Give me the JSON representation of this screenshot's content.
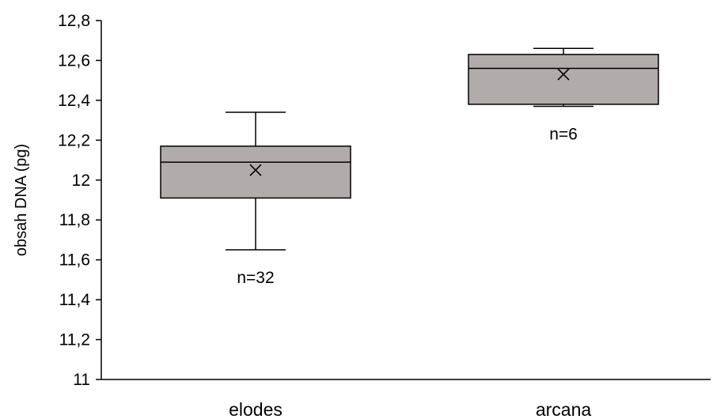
{
  "chart_data": {
    "type": "box",
    "title": "",
    "xlabel": "",
    "ylabel": "obsah DNA (pg)",
    "ylim": [
      11,
      12.8
    ],
    "yticks": [
      11,
      11.2,
      11.4,
      11.6,
      11.8,
      12,
      12.2,
      12.4,
      12.6,
      12.8
    ],
    "ytick_labels": [
      "11",
      "11,2",
      "11,4",
      "11,6",
      "11,8",
      "12",
      "12,2",
      "12,4",
      "12,6",
      "12,8"
    ],
    "grid": false,
    "legend": "none",
    "box_color": "#b0acab",
    "categories": [
      "elodes",
      "arcana"
    ],
    "boxes": [
      {
        "category": "elodes",
        "min": 11.65,
        "q1": 11.91,
        "median": 12.09,
        "q3": 12.17,
        "max": 12.34,
        "mean": 12.05,
        "n_label": "n=32"
      },
      {
        "category": "arcana",
        "min": 12.37,
        "q1": 12.38,
        "median": 12.56,
        "q3": 12.63,
        "max": 12.66,
        "mean": 12.53,
        "n_label": "n=6"
      }
    ]
  }
}
